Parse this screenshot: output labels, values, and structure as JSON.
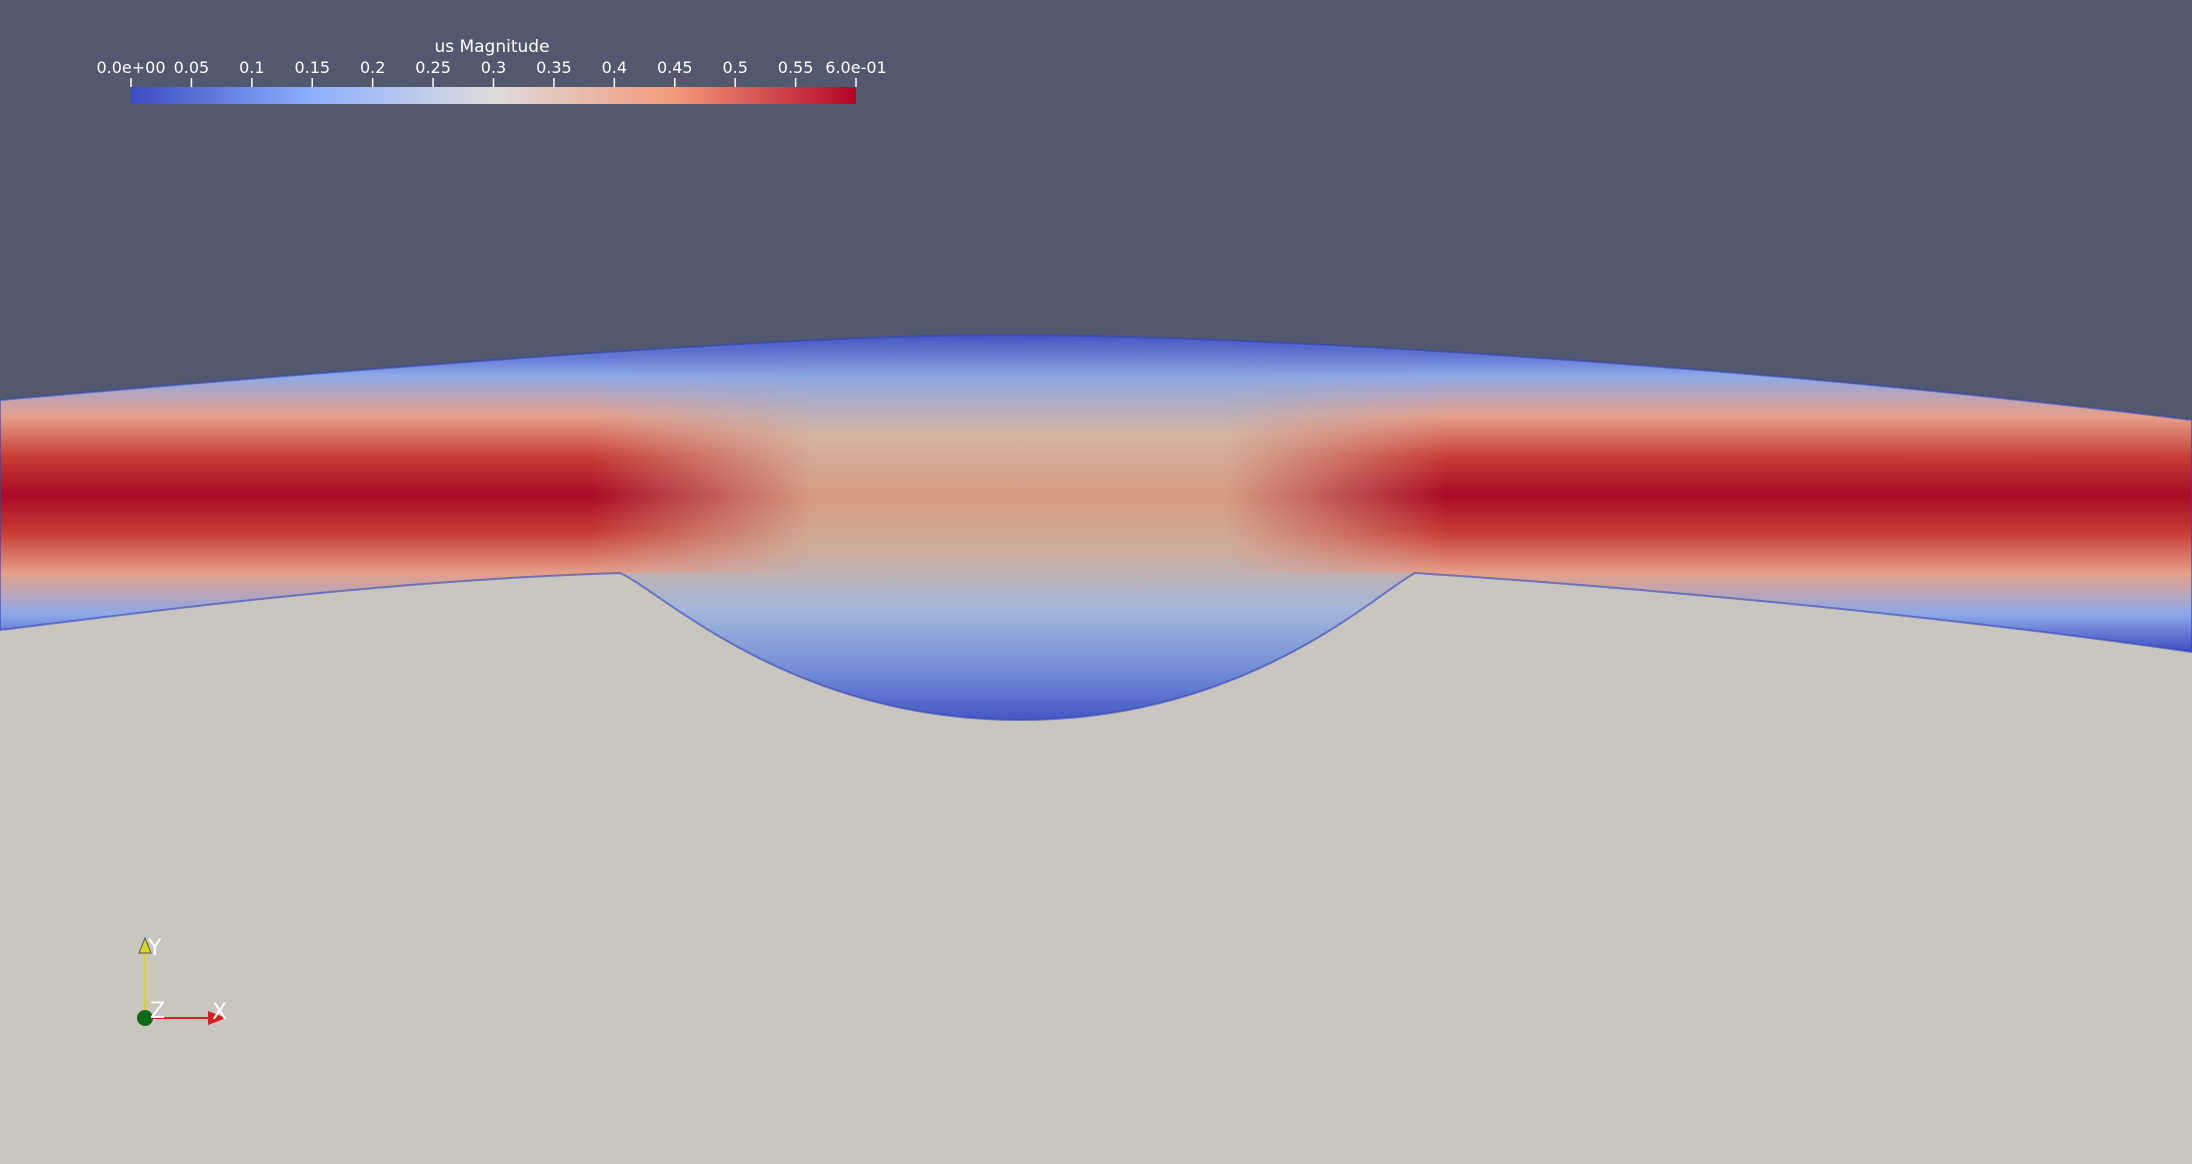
{
  "colors": {
    "background_sky": "#52586e",
    "background_ground": "#c8c6bf",
    "colormap_low": "#3b4cc0",
    "colormap_mid": "#dddcdc",
    "colormap_high": "#b40426",
    "axis_x": "#d42020",
    "axis_y": "#d8d820",
    "axis_z": "#0c6a18"
  },
  "colorbar": {
    "title": "us Magnitude",
    "range": [
      0,
      0.6
    ],
    "ticks": [
      {
        "value": 0.0,
        "label": "0.0e+00"
      },
      {
        "value": 0.05,
        "label": "0.05"
      },
      {
        "value": 0.1,
        "label": "0.1"
      },
      {
        "value": 0.15,
        "label": "0.15"
      },
      {
        "value": 0.2,
        "label": "0.2"
      },
      {
        "value": 0.25,
        "label": "0.25"
      },
      {
        "value": 0.3,
        "label": "0.3"
      },
      {
        "value": 0.35,
        "label": "0.35"
      },
      {
        "value": 0.4,
        "label": "0.4"
      },
      {
        "value": 0.45,
        "label": "0.45"
      },
      {
        "value": 0.5,
        "label": "0.5"
      },
      {
        "value": 0.55,
        "label": "0.55"
      },
      {
        "value": 0.6,
        "label": "6.0e-01"
      }
    ]
  },
  "axes": {
    "x_label": "X",
    "y_label": "Y",
    "z_label": "Z"
  }
}
